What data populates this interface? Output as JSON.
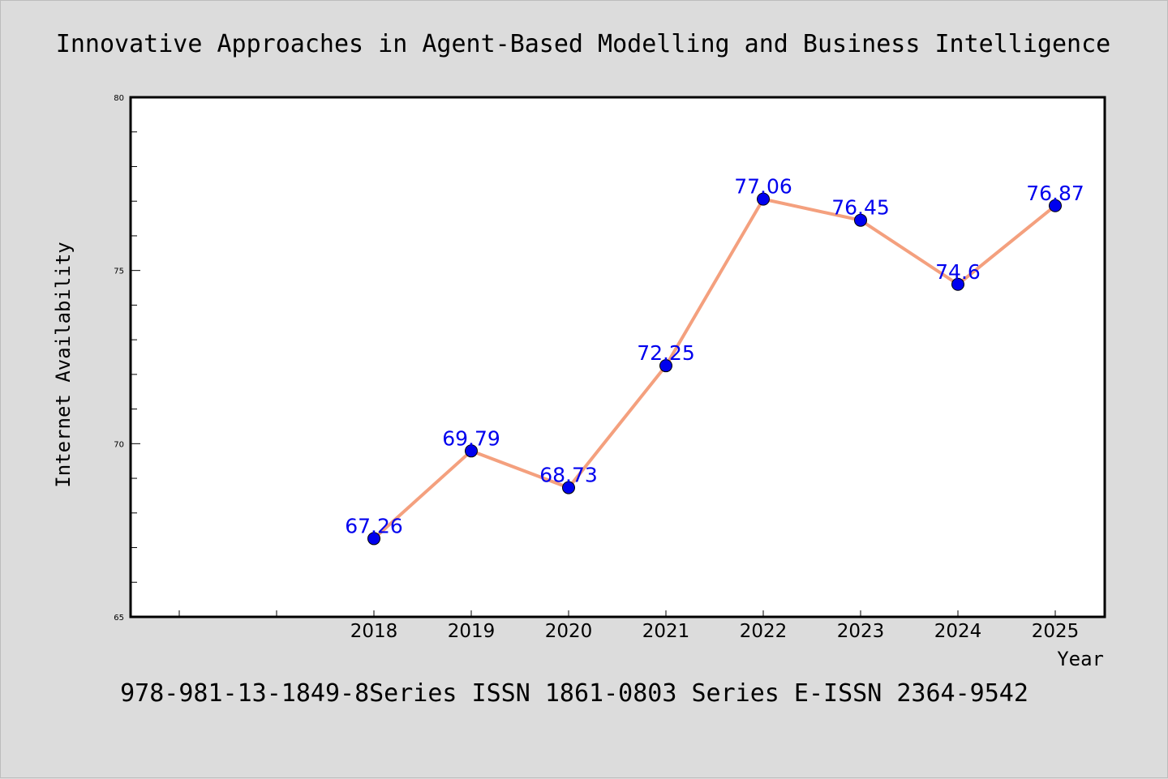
{
  "chart_data": {
    "type": "line",
    "title": "Innovative Approaches in Agent-Based Modelling and Business Intelligence",
    "footer": "978-981-13-1849-8Series ISSN 1861-0803 Series E-ISSN 2364-9542",
    "xlabel": "Year",
    "ylabel": "Internet Availability",
    "ylim": [
      65,
      80
    ],
    "yticks": [
      "65",
      "70",
      "75",
      "80"
    ],
    "categories": [
      "2018",
      "2019",
      "2020",
      "2021",
      "2022",
      "2023",
      "2024",
      "2025"
    ],
    "series": [
      {
        "values": [
          67.26,
          69.79,
          68.73,
          72.25,
          77.06,
          76.45,
          74.6,
          76.87
        ],
        "labels": [
          "67.26",
          "69.79",
          "68.73",
          "72.25",
          "77.06",
          "76.45",
          "74.6",
          "76.87"
        ],
        "line_color": "#f4a07e",
        "marker_color": "#0000ee",
        "label_color": "#0000ee"
      }
    ],
    "grid": false,
    "legend": "none"
  }
}
